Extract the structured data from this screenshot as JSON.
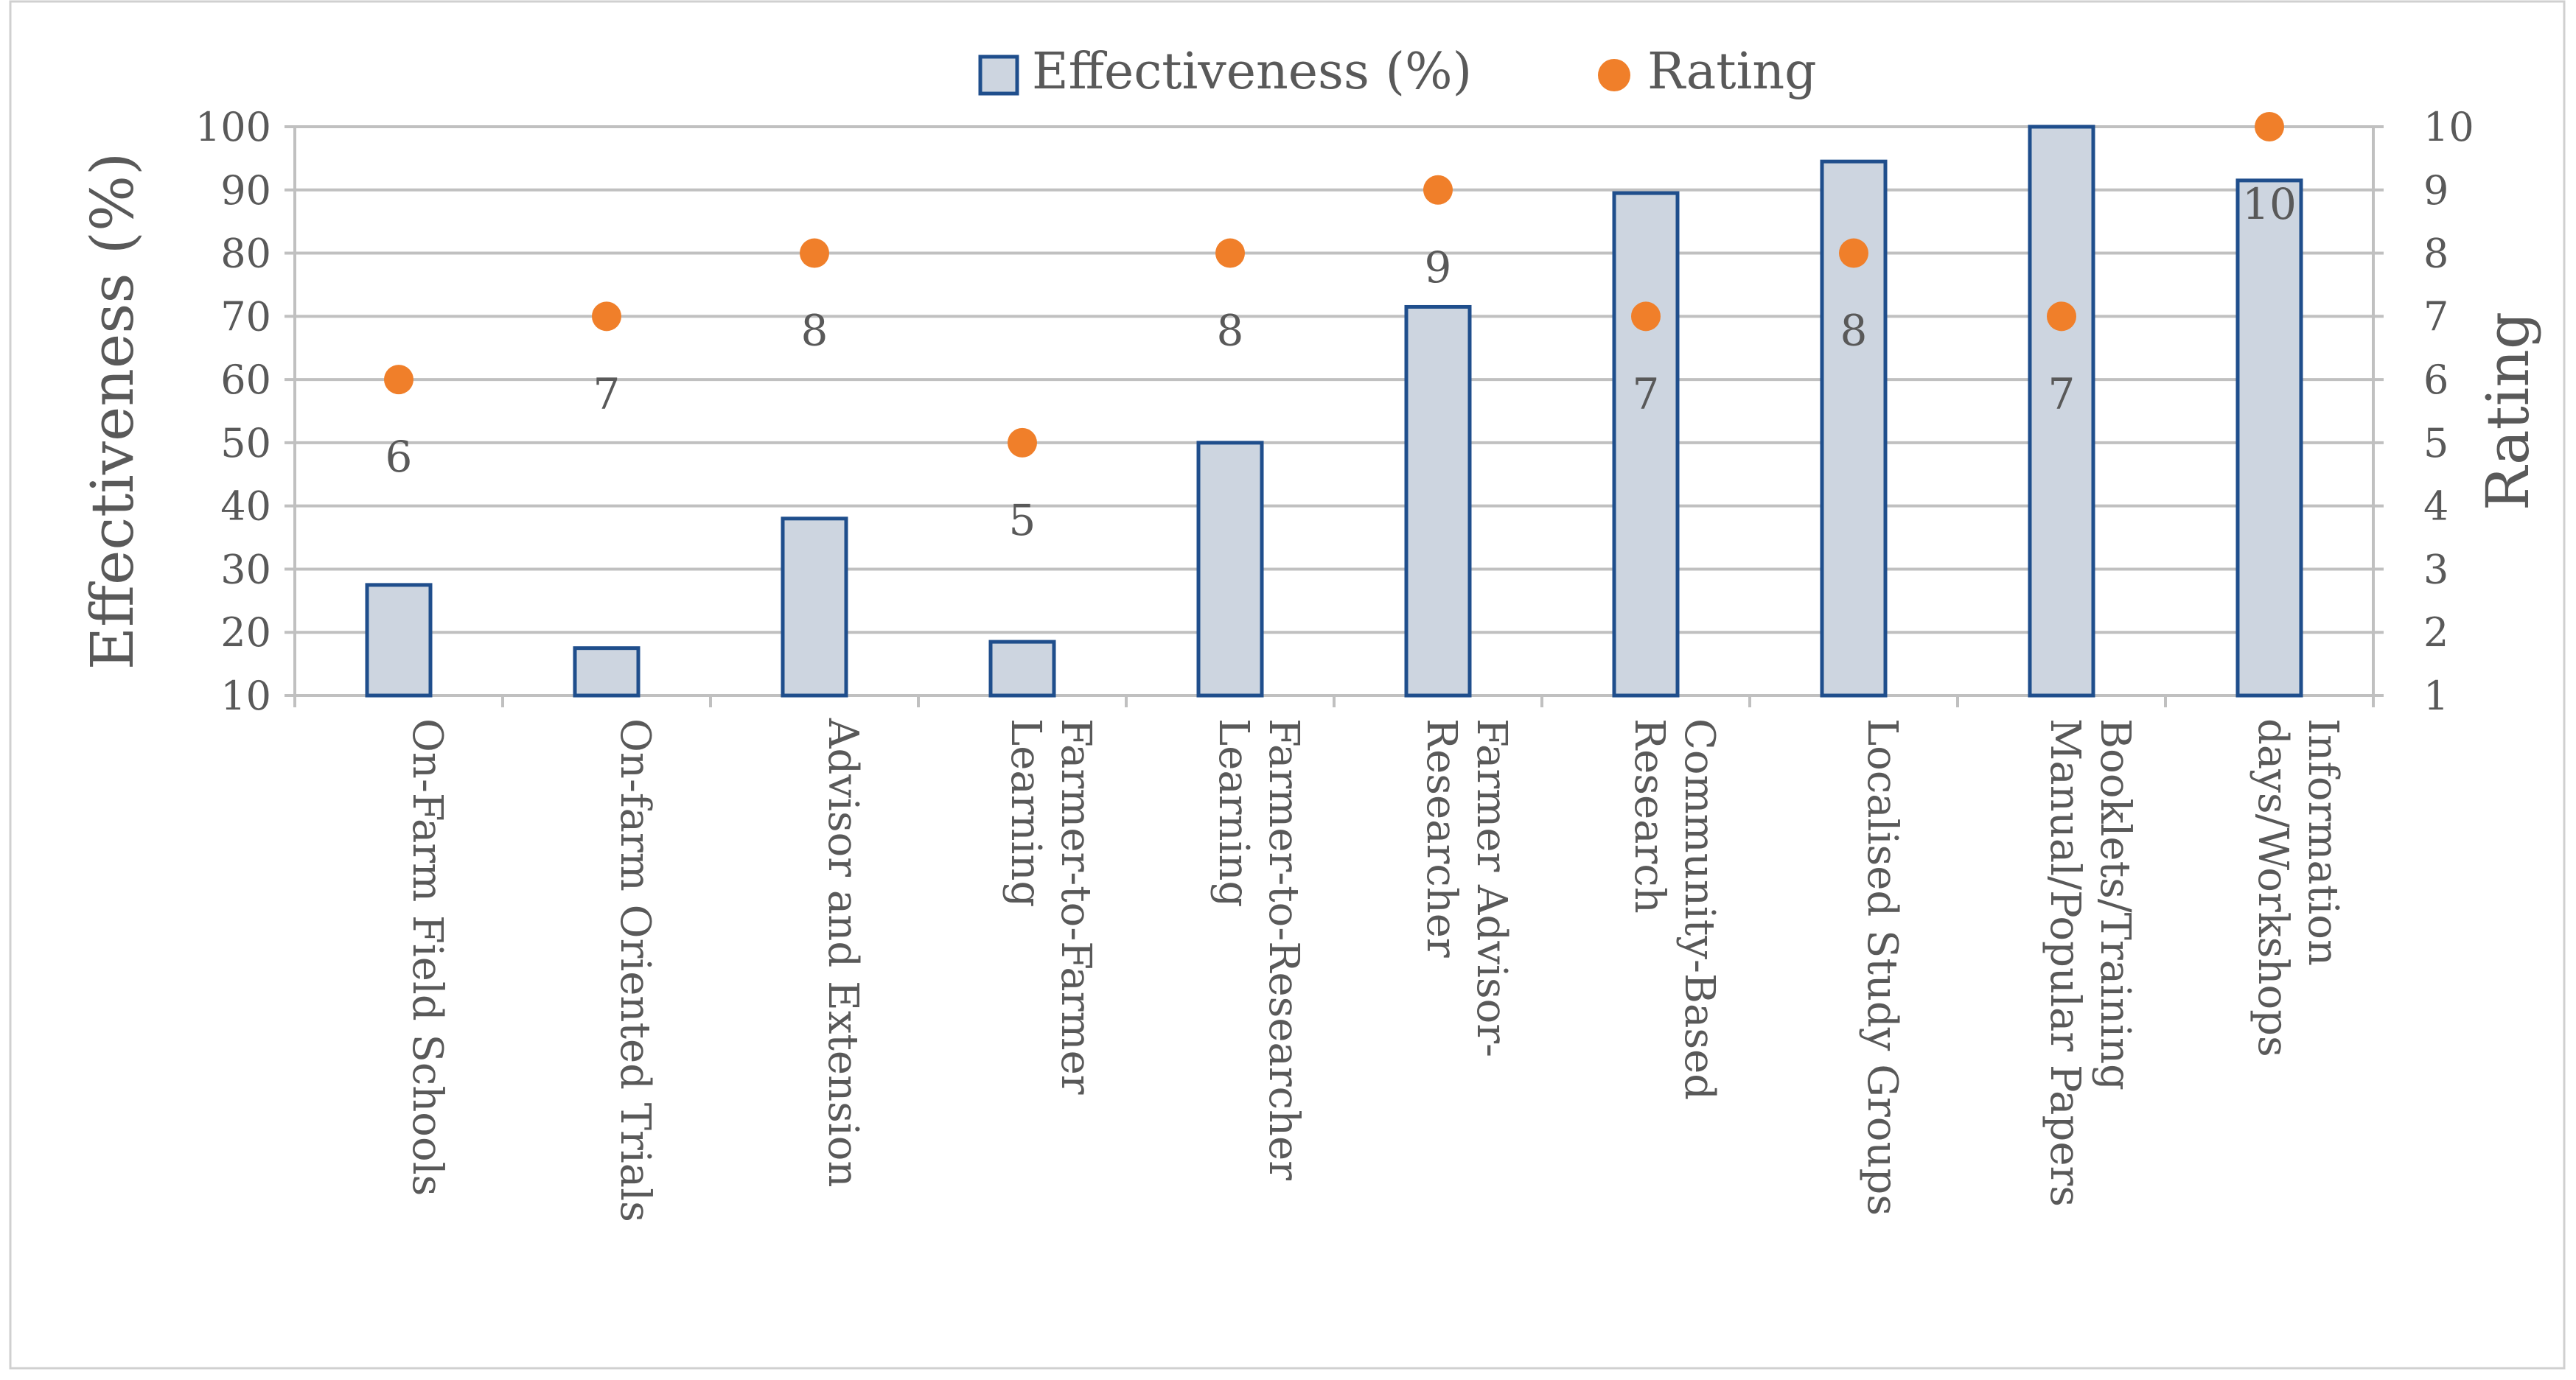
{
  "chart_data": {
    "type": "bar",
    "categories": [
      [
        "On-Farm Field Schools"
      ],
      [
        "On-farm Oriented Trials"
      ],
      [
        "Advisor and Extension"
      ],
      [
        "Farmer-to-Farmer",
        "Learning"
      ],
      [
        "Farmer-to-Researcher",
        "Learning"
      ],
      [
        "Farmer Advisor-",
        "Researcher"
      ],
      [
        "Community-Based",
        "Research"
      ],
      [
        "Localised Study Groups"
      ],
      [
        "Booklets/Training",
        "Manual/Popular Papers"
      ],
      [
        "Information",
        "days/Workshops"
      ]
    ],
    "series": [
      {
        "name": "Effectiveness (%)",
        "type": "bar",
        "axis": "left",
        "values": [
          27.5,
          17.5,
          38,
          18.5,
          50,
          71.5,
          89.5,
          94.5,
          100,
          91.5
        ]
      },
      {
        "name": "Rating",
        "type": "scatter",
        "axis": "right",
        "values": [
          6,
          7,
          8,
          5,
          8,
          9,
          7,
          8,
          7,
          10
        ]
      }
    ],
    "data_labels": [
      "6",
      "7",
      "8",
      "5",
      "8",
      "9",
      "7",
      "8",
      "7",
      "10"
    ],
    "ylabel": "Effectiveness (%)",
    "y2label": "Rating",
    "ylim": [
      10,
      100
    ],
    "y2lim": [
      1,
      10
    ],
    "yticks": [
      "10",
      "20",
      "30",
      "40",
      "50",
      "60",
      "70",
      "80",
      "90",
      "100"
    ],
    "y2ticks": [
      "1",
      "2",
      "3",
      "4",
      "5",
      "6",
      "7",
      "8",
      "9",
      "10"
    ],
    "grid": true,
    "legend": "top-center",
    "colors": {
      "bar_fill": "#cdd5e0",
      "bar_stroke": "#1f4e8c",
      "marker": "#f07f2a",
      "grid": "#c0c0c0",
      "axis_text": "#595959",
      "border": "#d0d0d0"
    }
  }
}
